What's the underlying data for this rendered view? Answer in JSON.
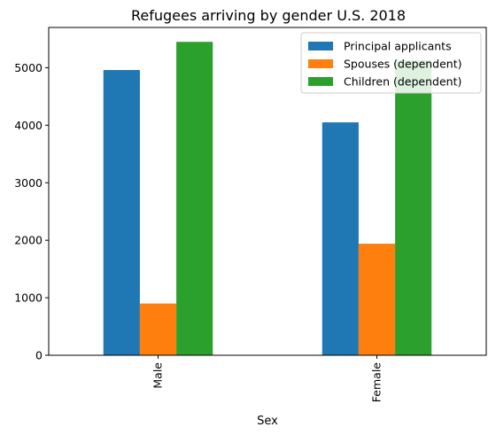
{
  "chart_data": {
    "type": "bar",
    "title": "Refugees arriving by gender U.S. 2018",
    "xlabel": "Sex",
    "ylabel": "",
    "categories": [
      "Male",
      "Female"
    ],
    "series": [
      {
        "name": "Principal applicants",
        "values": [
          4960,
          4050
        ],
        "color": "#1f77b4"
      },
      {
        "name": "Spouses (dependent)",
        "values": [
          900,
          1940
        ],
        "color": "#ff7f0e"
      },
      {
        "name": "Children (dependent)",
        "values": [
          5450,
          5130
        ],
        "color": "#2ca02c"
      }
    ],
    "ylim": [
      0,
      5700
    ],
    "yticks": [
      "0",
      "1000",
      "2000",
      "3000",
      "4000",
      "5000"
    ],
    "grid": false,
    "legend": "top-right"
  }
}
